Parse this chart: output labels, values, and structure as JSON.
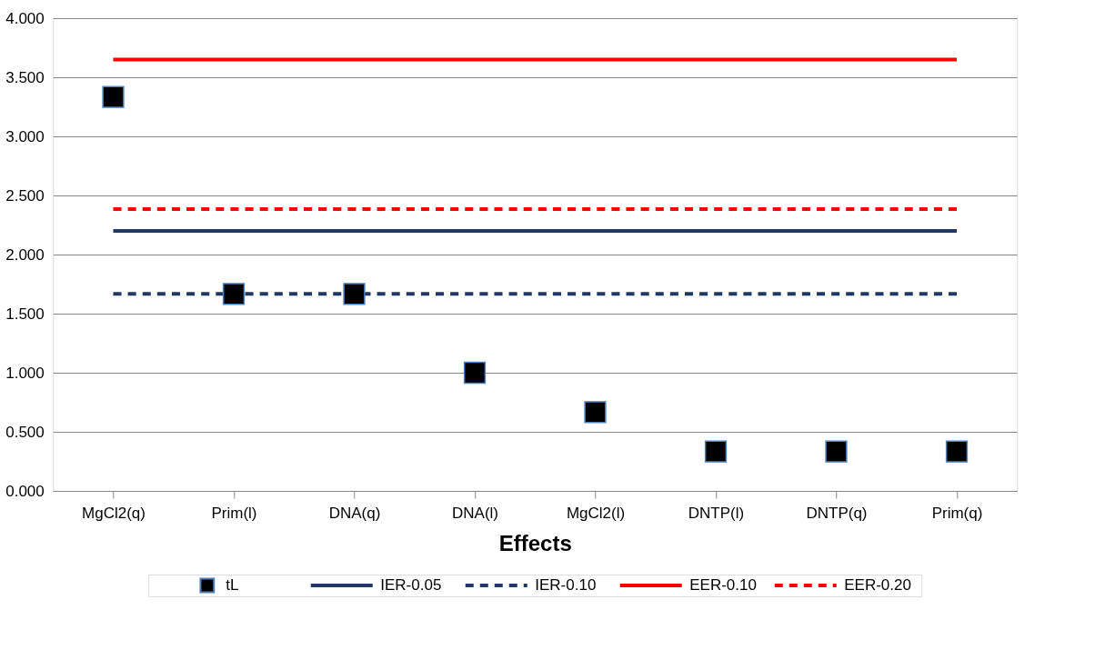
{
  "chart_data": {
    "type": "scatter",
    "xlabel": "Effects",
    "categories": [
      "MgCl2(q)",
      "Prim(l)",
      "DNA(q)",
      "DNA(l)",
      "MgCl2(l)",
      "DNTP(l)",
      "DNTP(q)",
      "Prim(q)"
    ],
    "series": [
      {
        "name": "tL",
        "marker": "square",
        "color": "#000000",
        "values": [
          3.333,
          1.667,
          1.667,
          1.0,
          0.667,
          0.333,
          0.333,
          0.333
        ]
      },
      {
        "name": "IER-0.05",
        "type": "line",
        "line_style": "solid",
        "color": "#1f3864",
        "values": [
          2.2,
          2.2,
          2.2,
          2.2,
          2.2,
          2.2,
          2.2,
          2.2
        ]
      },
      {
        "name": "IER-0.10",
        "type": "line",
        "line_style": "dashed",
        "color": "#1f3864",
        "values": [
          1.667,
          1.667,
          1.667,
          1.667,
          1.667,
          1.667,
          1.667,
          1.667
        ]
      },
      {
        "name": "EER-0.10",
        "type": "line",
        "line_style": "solid",
        "color": "#ff0000",
        "values": [
          3.65,
          3.65,
          3.65,
          3.65,
          3.65,
          3.65,
          3.65,
          3.65
        ]
      },
      {
        "name": "EER-0.20",
        "type": "line",
        "line_style": "dashed",
        "color": "#ff0000",
        "values": [
          2.385,
          2.385,
          2.385,
          2.385,
          2.385,
          2.385,
          2.385,
          2.385
        ]
      }
    ],
    "ylim": [
      0,
      4
    ],
    "yticks": [
      {
        "value": 0,
        "label": "0.000"
      },
      {
        "value": 0.5,
        "label": "0.500"
      },
      {
        "value": 1,
        "label": "1.000"
      },
      {
        "value": 1.5,
        "label": "1.500"
      },
      {
        "value": 2,
        "label": "2.000"
      },
      {
        "value": 2.5,
        "label": "2.500"
      },
      {
        "value": 3,
        "label": "3.000"
      },
      {
        "value": 3.5,
        "label": "3.500"
      },
      {
        "value": 4,
        "label": "4.000"
      }
    ],
    "grid": "y",
    "legend": "bottom"
  }
}
